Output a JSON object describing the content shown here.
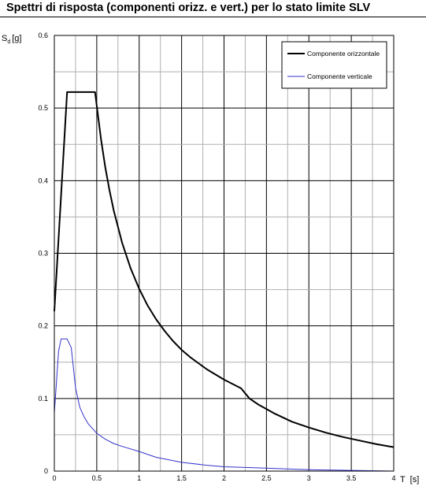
{
  "title": "Spettri di risposta (componenti orizz. e vert.) per lo stato limite SLV",
  "chart_data": {
    "type": "line",
    "title": "Spettri di risposta (componenti orizz. e vert.) per lo stato limite SLV",
    "ylabel_main": "S",
    "ylabel_sub": "d",
    "ylabel_unit": "[g]",
    "xlabel": "T  [s]",
    "xlim": [
      0,
      4
    ],
    "ylim": [
      0,
      0.6
    ],
    "grid": true,
    "legend_position": "top-right",
    "x_ticks": [
      "0",
      "0.5",
      "1",
      "1.5",
      "2",
      "2.5",
      "3",
      "3.5",
      "4"
    ],
    "y_ticks": [
      "0",
      "0.1",
      "0.2",
      "0.3",
      "0.4",
      "0.5",
      "0.6"
    ],
    "series": [
      {
        "name": "Componente orizzontale",
        "color": "#000000",
        "x": [
          0,
          0.15,
          0.2,
          0.3,
          0.4,
          0.48,
          0.5,
          0.55,
          0.6,
          0.65,
          0.7,
          0.8,
          0.9,
          1.0,
          1.1,
          1.2,
          1.3,
          1.4,
          1.5,
          1.6,
          1.8,
          2.0,
          2.2,
          2.3,
          2.4,
          2.6,
          2.8,
          3.0,
          3.2,
          3.4,
          3.6,
          3.8,
          4.0
        ],
        "values": [
          0.22,
          0.522,
          0.522,
          0.522,
          0.522,
          0.522,
          0.503,
          0.457,
          0.419,
          0.387,
          0.359,
          0.314,
          0.279,
          0.251,
          0.228,
          0.209,
          0.193,
          0.179,
          0.167,
          0.157,
          0.14,
          0.126,
          0.114,
          0.1,
          0.092,
          0.079,
          0.068,
          0.06,
          0.053,
          0.047,
          0.042,
          0.037,
          0.033
        ]
      },
      {
        "name": "Componente verticale",
        "color": "#3333cc",
        "x": [
          0,
          0.05,
          0.08,
          0.1,
          0.15,
          0.2,
          0.25,
          0.3,
          0.35,
          0.4,
          0.5,
          0.6,
          0.7,
          0.8,
          1.0,
          1.2,
          1.5,
          1.8,
          2.0,
          2.5,
          3.0,
          3.5,
          4.0
        ],
        "values": [
          0.08,
          0.165,
          0.182,
          0.182,
          0.182,
          0.17,
          0.115,
          0.088,
          0.075,
          0.065,
          0.052,
          0.044,
          0.038,
          0.034,
          0.027,
          0.019,
          0.012,
          0.008,
          0.006,
          0.004,
          0.002,
          0.001,
          0.0
        ]
      }
    ]
  }
}
